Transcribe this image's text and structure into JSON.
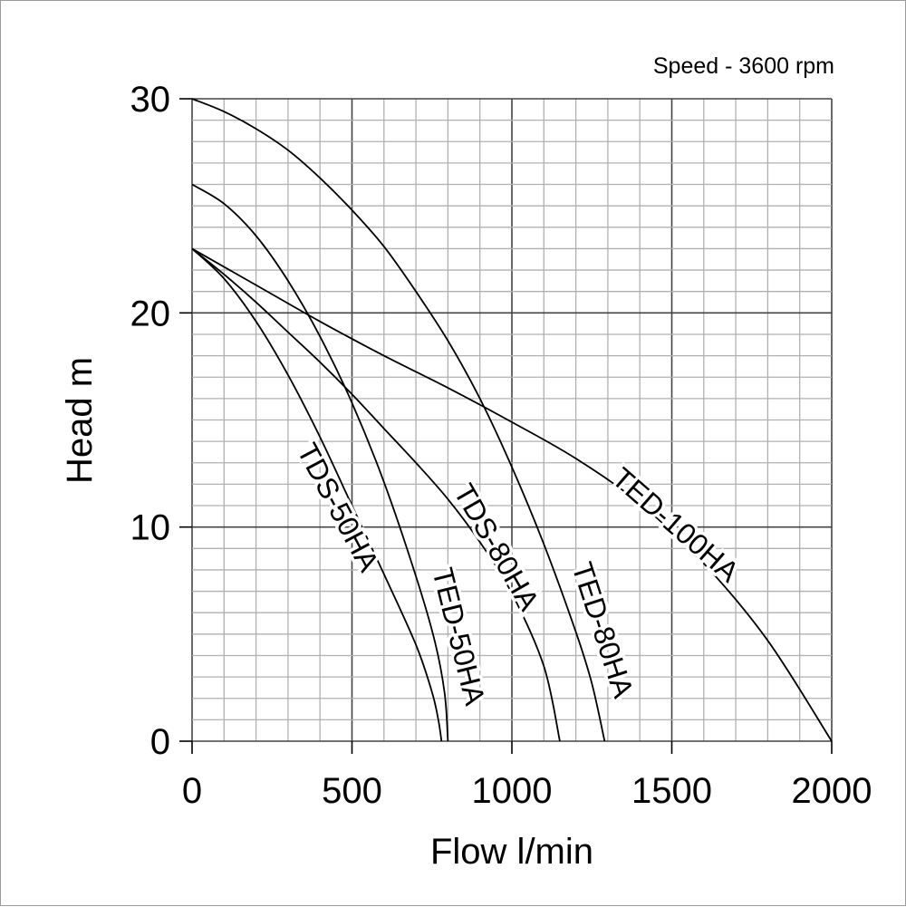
{
  "chart_data": {
    "type": "line",
    "title": "",
    "annotation": "Speed - 3600 rpm",
    "xlabel": "Flow l/min",
    "ylabel": "Head m",
    "xlim": [
      0,
      2000
    ],
    "ylim": [
      0,
      30
    ],
    "xticks": [
      0,
      500,
      1000,
      1500,
      2000
    ],
    "yticks": [
      0,
      10,
      20,
      30
    ],
    "x_tick_labels": [
      "0",
      "500",
      "1000",
      "1500",
      "2000"
    ],
    "y_tick_labels": [
      "0",
      "10",
      "20",
      "30"
    ],
    "grid": true,
    "series": [
      {
        "name": "TDS-50HA",
        "x": [
          0,
          100,
          200,
          300,
          400,
          500,
          600,
          700,
          750,
          770,
          780
        ],
        "y": [
          23,
          21.6,
          19.6,
          17.1,
          14.2,
          11,
          7.8,
          4.5,
          2.3,
          1,
          0
        ]
      },
      {
        "name": "TED-50HA",
        "x": [
          0,
          100,
          200,
          300,
          400,
          500,
          600,
          700,
          760,
          790,
          800
        ],
        "y": [
          26,
          25.1,
          23.6,
          21.5,
          18.9,
          15.8,
          12.1,
          7.7,
          4.6,
          2.2,
          0
        ]
      },
      {
        "name": "TDS-80HA",
        "x": [
          0,
          100,
          200,
          300,
          400,
          500,
          600,
          700,
          800,
          900,
          1000,
          1100,
          1150
        ],
        "y": [
          23,
          21.8,
          20.5,
          19.1,
          17.7,
          16.2,
          14.6,
          13,
          11.3,
          9.3,
          6.9,
          3.5,
          0
        ]
      },
      {
        "name": "TED-80HA",
        "x": [
          0,
          100,
          200,
          300,
          400,
          500,
          600,
          700,
          800,
          900,
          1000,
          1100,
          1200,
          1250,
          1290
        ],
        "y": [
          30,
          29.4,
          28.6,
          27.6,
          26.3,
          24.8,
          23.1,
          21,
          18.7,
          16,
          12.8,
          9.2,
          5.1,
          2.7,
          0
        ]
      },
      {
        "name": "TED-100HA",
        "x": [
          0,
          200,
          400,
          600,
          800,
          1000,
          1200,
          1400,
          1600,
          1800,
          2000
        ],
        "y": [
          23,
          21.3,
          19.6,
          18,
          16.5,
          14.9,
          13.2,
          11.1,
          8.3,
          4.7,
          0
        ]
      }
    ]
  }
}
